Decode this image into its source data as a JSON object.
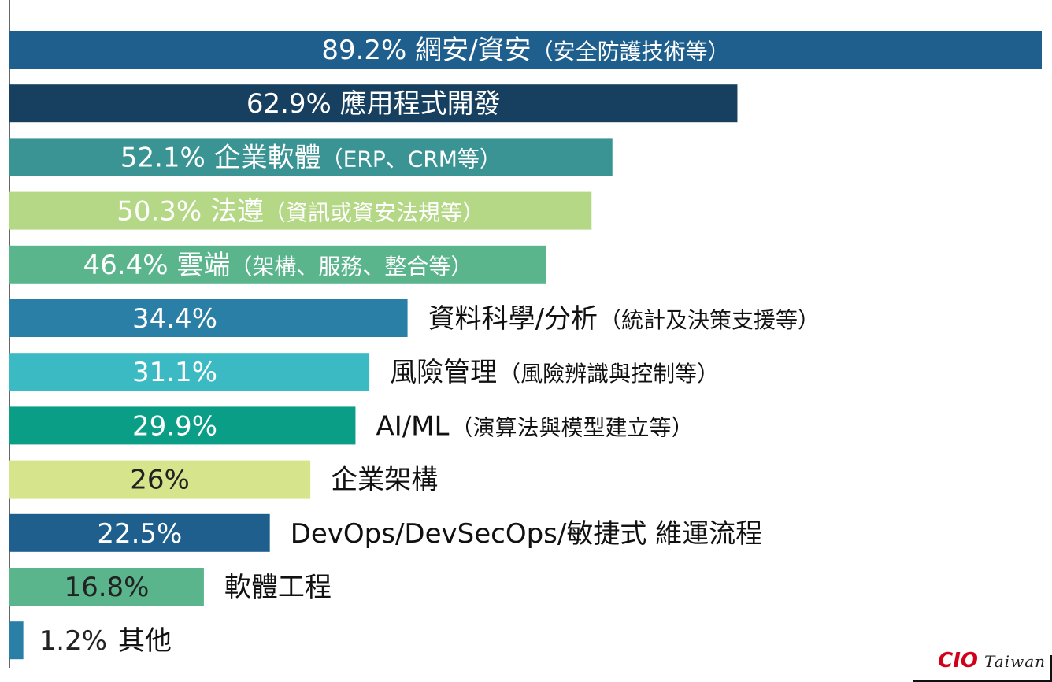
{
  "chart_data": {
    "type": "bar",
    "orientation": "horizontal",
    "xlim": [
      0,
      89.2
    ],
    "items": [
      {
        "value": 89.2,
        "value_label": "89.2%",
        "label": "網安/資安",
        "note": "（安全防護技術等）",
        "color": "#1e5f8e",
        "label_inside": true,
        "text_color": "#ffffff"
      },
      {
        "value": 62.9,
        "value_label": "62.9%",
        "label": "應用程式開發",
        "note": "",
        "color": "#173f5f",
        "label_inside": true,
        "text_color": "#ffffff"
      },
      {
        "value": 52.1,
        "value_label": "52.1%",
        "label": "企業軟體",
        "note": "（ERP、CRM等）",
        "color": "#3b9494",
        "label_inside": true,
        "text_color": "#ffffff"
      },
      {
        "value": 50.3,
        "value_label": "50.3%",
        "label": "法遵",
        "note": "（資訊或資安法規等）",
        "color": "#b4d886",
        "label_inside": true,
        "text_color": "#ffffff"
      },
      {
        "value": 46.4,
        "value_label": "46.4%",
        "label": "雲端",
        "note": "（架構、服務、整合等）",
        "color": "#5bb58c",
        "label_inside": true,
        "text_color": "#ffffff"
      },
      {
        "value": 34.4,
        "value_label": "34.4%",
        "label": "資料科學/分析",
        "note": "（統計及決策支援等）",
        "color": "#2a7fa6",
        "label_inside": false,
        "text_color": "#ffffff"
      },
      {
        "value": 31.1,
        "value_label": "31.1%",
        "label": "風險管理",
        "note": "（風險辨識與控制等）",
        "color": "#3bbac4",
        "label_inside": false,
        "text_color": "#ffffff"
      },
      {
        "value": 29.9,
        "value_label": "29.9%",
        "label": "AI/ML",
        "note": "（演算法與模型建立等）",
        "color": "#0a9e87",
        "label_inside": false,
        "text_color": "#ffffff"
      },
      {
        "value": 26.0,
        "value_label": "26%",
        "label": "企業架構",
        "note": "",
        "color": "#d6e48c",
        "label_inside": false,
        "text_color": "#222222"
      },
      {
        "value": 22.5,
        "value_label": "22.5%",
        "label": "DevOps/DevSecOps/敏捷式 維運流程",
        "note": "",
        "color": "#1e5f8e",
        "label_inside": false,
        "text_color": "#ffffff"
      },
      {
        "value": 16.8,
        "value_label": "16.8%",
        "label": "軟體工程",
        "note": "",
        "color": "#5bb58c",
        "label_inside": false,
        "text_color": "#222222"
      },
      {
        "value": 1.2,
        "value_label": "1.2%",
        "label": "其他",
        "note": "",
        "color": "#2a7fa6",
        "label_inside": false,
        "text_color": "#222222"
      }
    ]
  },
  "logo": {
    "brand": "CIO",
    "region": "Taiwan"
  }
}
